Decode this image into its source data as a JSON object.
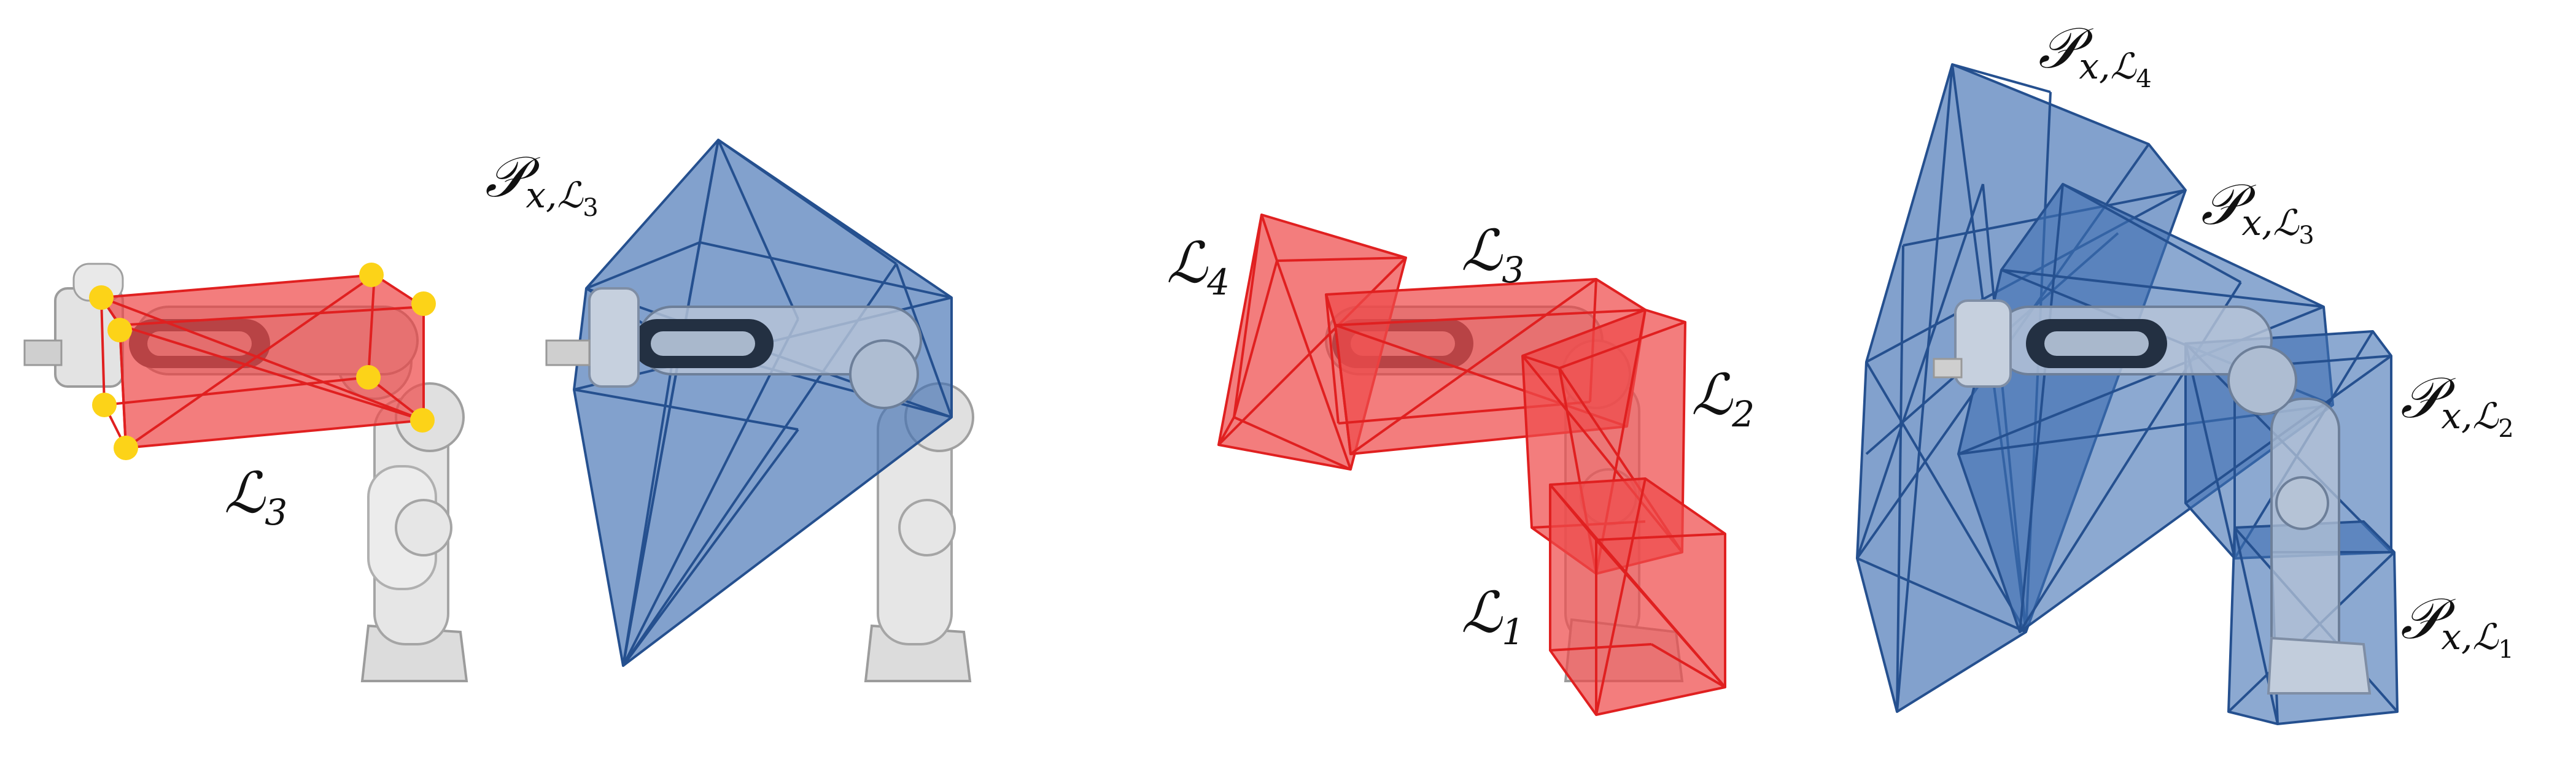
{
  "colors": {
    "red_fill": "#ee4b4b",
    "red_edge": "#e02020",
    "blue_fill": "#3f6fb2",
    "blue_edge": "#25508f",
    "corner": "#fcd318",
    "robot": "#d8d8d8",
    "robot_edge": "#9c9c9c",
    "robot_dark": "#2b2f36"
  },
  "panel_a": {
    "box_label": {
      "base": "ℒ",
      "sub": "3"
    },
    "hull_label": {
      "base": "𝒫",
      "sub_var": "x,",
      "sub_set": "ℒ",
      "sub_idx": "3"
    }
  },
  "panel_b": {
    "box_labels": [
      {
        "base": "ℒ",
        "sub": "4"
      },
      {
        "base": "ℒ",
        "sub": "3"
      },
      {
        "base": "ℒ",
        "sub": "2"
      },
      {
        "base": "ℒ",
        "sub": "1"
      }
    ]
  },
  "panel_c": {
    "hull_labels": [
      {
        "base": "𝒫",
        "sub_var": "x,",
        "sub_set": "ℒ",
        "sub_idx": "4"
      },
      {
        "base": "𝒫",
        "sub_var": "x,",
        "sub_set": "ℒ",
        "sub_idx": "3"
      },
      {
        "base": "𝒫",
        "sub_var": "x,",
        "sub_set": "ℒ",
        "sub_idx": "2"
      },
      {
        "base": "𝒫",
        "sub_var": "x,",
        "sub_set": "ℒ",
        "sub_idx": "1"
      }
    ]
  }
}
